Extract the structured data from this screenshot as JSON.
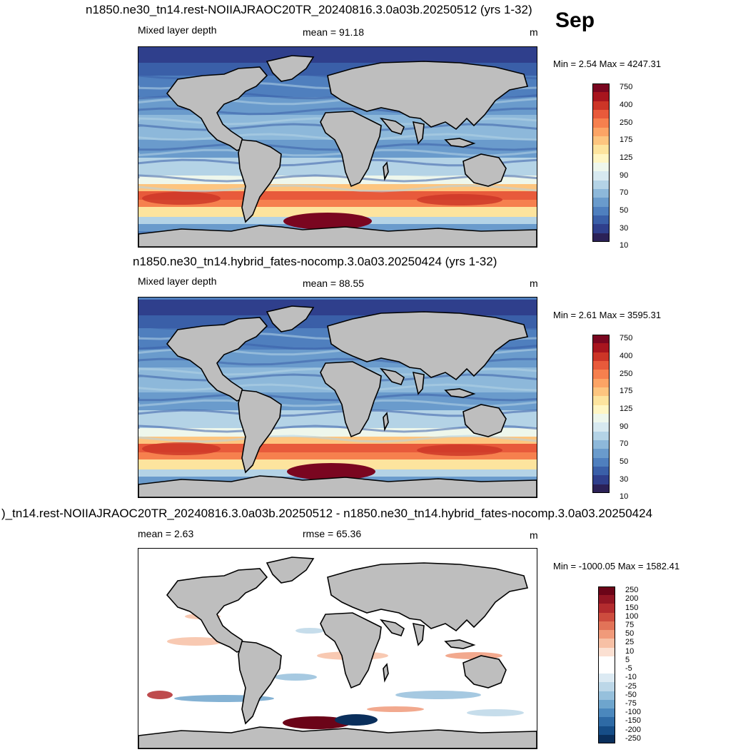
{
  "figure": {
    "month": "Sep",
    "panels": [
      {
        "title": "n1850.ne30_tn14.rest-NOIIAJRAOC20TR_20240816.3.0a03b.20250512 (yrs 1-32)",
        "left_label": "Mixed layer depth",
        "center_label": "mean =  91.18",
        "units": "m",
        "minmax": "Min =   2.54 Max = 4247.31",
        "colorbar_labels": [
          "750",
          "400",
          "250",
          "175",
          "125",
          "90",
          "70",
          "50",
          "30",
          "10"
        ]
      },
      {
        "title": "n1850.ne30_tn14.hybrid_fates-nocomp.3.0a03.20250424 (yrs 1-32)",
        "left_label": "Mixed layer depth",
        "center_label": "mean =  88.55",
        "units": "m",
        "minmax": "Min =   2.61 Max = 3595.31",
        "colorbar_labels": [
          "750",
          "400",
          "250",
          "175",
          "125",
          "90",
          "70",
          "50",
          "30",
          "10"
        ]
      },
      {
        "title": ")_tn14.rest-NOIIAJRAOC20TR_20240816.3.0a03b.20250512 - n1850.ne30_tn14.hybrid_fates-nocomp.3.0a03.20250424",
        "left_label": "mean =   2.63",
        "center_label": "rmse =  65.36",
        "units": "m",
        "minmax": "Min = -1000.05 Max = 1582.41",
        "colorbar_labels": [
          "250",
          "200",
          "150",
          "100",
          "75",
          "50",
          "25",
          "10",
          "5",
          "-5",
          "-10",
          "-25",
          "-50",
          "-75",
          "-100",
          "-150",
          "-200",
          "-250"
        ]
      }
    ]
  },
  "colors": {
    "seq_scale": [
      "#2b2157",
      "#2f3f8c",
      "#3a5fa8",
      "#4f7fbe",
      "#6a9bcc",
      "#8db8da",
      "#b4d3e6",
      "#d7e9f0",
      "#eef7ec",
      "#fff6c4",
      "#fde49e",
      "#fdc57f",
      "#fca465",
      "#f6804e",
      "#e85a3b",
      "#cc3527",
      "#a8151e",
      "#7a0620"
    ],
    "diff_scale": [
      "#0a2f5c",
      "#164d87",
      "#2e6aa5",
      "#4b88bd",
      "#6ea5cd",
      "#96c0dc",
      "#bcd7e8",
      "#dceaf3",
      "#ffffff",
      "#ffffff",
      "#fbe0d2",
      "#f7c0a5",
      "#f09a7a",
      "#e27358",
      "#cd4c3e",
      "#b32b2e",
      "#921523",
      "#6b0418"
    ],
    "land": "#bebebe"
  }
}
